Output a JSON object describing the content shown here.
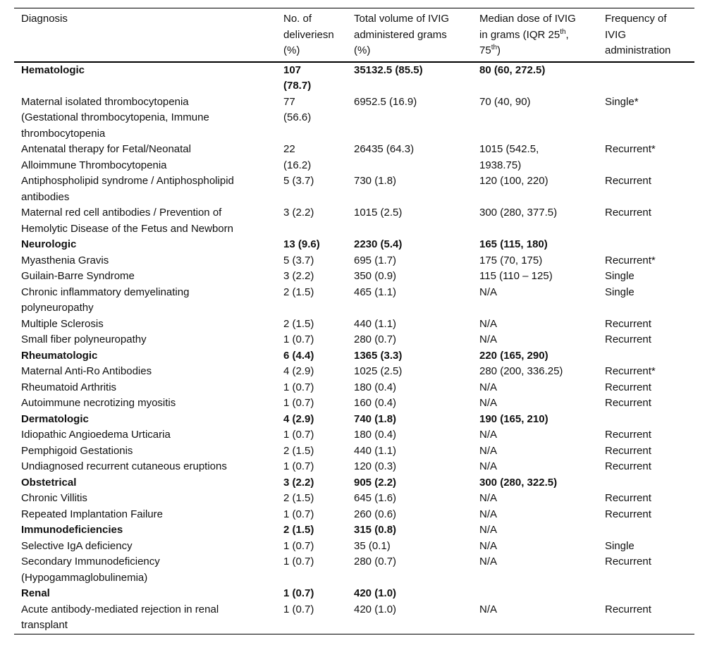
{
  "table": {
    "header": {
      "diagnosis": "Diagnosis",
      "deliveries": "No. of\ndeliveriesn\n(%)",
      "volume": "Total volume of IVIG\nadministered grams\n(%)",
      "median": {
        "p1": "Median dose of IVIG\nin grams (IQR 25",
        "s1": "th",
        "p2": ",\n75",
        "s2": "th",
        "p3": ")"
      },
      "frequency": "Frequency of\nIVIG\nadministration"
    },
    "rows": [
      {
        "diagnosis": "Hematologic",
        "n": "107\n(78.7)",
        "volume": "35132.5 (85.5)",
        "median": "80 (60, 272.5)",
        "frequency": "",
        "bold": true
      },
      {
        "diagnosis": "Maternal isolated thrombocytopenia\n(Gestational thrombocytopenia, Immune\nthrombocytopenia",
        "n": "77\n(56.6)",
        "volume": "6952.5 (16.9)",
        "median": "70 (40, 90)",
        "frequency": "Single*",
        "bold": false
      },
      {
        "diagnosis": "Antenatal therapy for Fetal/Neonatal\nAlloimmune Thrombocytopenia",
        "n": "22\n(16.2)",
        "volume": "26435 (64.3)",
        "median": "1015 (542.5,\n1938.75)",
        "frequency": "Recurrent*",
        "bold": false
      },
      {
        "diagnosis": "Antiphospholipid syndrome / Antiphospholipid\nantibodies",
        "n": "5 (3.7)",
        "volume": "730 (1.8)",
        "median": "120 (100, 220)",
        "frequency": "Recurrent",
        "bold": false
      },
      {
        "diagnosis": "Maternal red cell antibodies / Prevention of\nHemolytic Disease of the Fetus and Newborn",
        "n": "3 (2.2)",
        "volume": "1015 (2.5)",
        "median": "300 (280, 377.5)",
        "frequency": "Recurrent",
        "bold": false
      },
      {
        "diagnosis": "Neurologic",
        "n": "13 (9.6)",
        "volume": "2230 (5.4)",
        "median": "165 (115, 180)",
        "frequency": "",
        "bold": true
      },
      {
        "diagnosis": "Myasthenia Gravis",
        "n": "5 (3.7)",
        "volume": "695 (1.7)",
        "median": "175 (70, 175)",
        "frequency": "Recurrent*",
        "bold": false
      },
      {
        "diagnosis": "Guilain-Barre Syndrome",
        "n": "3 (2.2)",
        "volume": "350 (0.9)",
        "median": "115 (110 – 125)",
        "frequency": "Single",
        "bold": false
      },
      {
        "diagnosis": "Chronic inflammatory demyelinating\npolyneuropathy",
        "n": "2 (1.5)",
        "volume": "465 (1.1)",
        "median": "N/A",
        "frequency": "Single",
        "bold": false
      },
      {
        "diagnosis": "Multiple Sclerosis",
        "n": "2 (1.5)",
        "volume": "440 (1.1)",
        "median": "N/A",
        "frequency": "Recurrent",
        "bold": false
      },
      {
        "diagnosis": "Small fiber polyneuropathy",
        "n": "1 (0.7)",
        "volume": "280 (0.7)",
        "median": "N/A",
        "frequency": "Recurrent",
        "bold": false
      },
      {
        "diagnosis": "Rheumatologic",
        "n": "6 (4.4)",
        "volume": "1365 (3.3)",
        "median": "220 (165, 290)",
        "frequency": "",
        "bold": true
      },
      {
        "diagnosis": "Maternal Anti-Ro Antibodies",
        "n": "4 (2.9)",
        "volume": "1025 (2.5)",
        "median": "280 (200, 336.25)",
        "frequency": "Recurrent*",
        "bold": false
      },
      {
        "diagnosis": "Rheumatoid Arthritis",
        "n": "1 (0.7)",
        "volume": "180 (0.4)",
        "median": "N/A",
        "frequency": "Recurrent",
        "bold": false
      },
      {
        "diagnosis": "Autoimmune necrotizing myositis",
        "n": "1 (0.7)",
        "volume": "160 (0.4)",
        "median": "N/A",
        "frequency": "Recurrent",
        "bold": false
      },
      {
        "diagnosis": "Dermatologic",
        "n": "4 (2.9)",
        "volume": "740 (1.8)",
        "median": "190 (165, 210)",
        "frequency": "",
        "bold": true
      },
      {
        "diagnosis": "Idiopathic Angioedema Urticaria",
        "n": "1 (0.7)",
        "volume": "180 (0.4)",
        "median": "N/A",
        "frequency": "Recurrent",
        "bold": false
      },
      {
        "diagnosis": "Pemphigoid Gestationis",
        "n": "2 (1.5)",
        "volume": "440 (1.1)",
        "median": "N/A",
        "frequency": "Recurrent",
        "bold": false
      },
      {
        "diagnosis": "Undiagnosed recurrent cutaneous eruptions",
        "n": "1 (0.7)",
        "volume": "120 (0.3)",
        "median": "N/A",
        "frequency": "Recurrent",
        "bold": false
      },
      {
        "diagnosis": "Obstetrical",
        "n": "3 (2.2)",
        "volume": "905 (2.2)",
        "median": "300 (280, 322.5)",
        "frequency": "",
        "bold": true
      },
      {
        "diagnosis": "Chronic Villitis",
        "n": "2 (1.5)",
        "volume": "645 (1.6)",
        "median": "N/A",
        "frequency": "Recurrent",
        "bold": false
      },
      {
        "diagnosis": "Repeated Implantation Failure",
        "n": "1 (0.7)",
        "volume": "260 (0.6)",
        "median": "N/A",
        "frequency": "Recurrent",
        "bold": false
      },
      {
        "diagnosis": "Immunodeficiencies",
        "n": "2 (1.5)",
        "volume": "315 (0.8)",
        "median": "N/A",
        "frequency": "",
        "bold": true,
        "median_bold": false
      },
      {
        "diagnosis": "Selective IgA deficiency",
        "n": "1 (0.7)",
        "volume": "35 (0.1)",
        "median": "N/A",
        "frequency": "Single",
        "bold": false
      },
      {
        "diagnosis": "Secondary Immunodeficiency\n(Hypogammaglobulinemia)",
        "n": "1 (0.7)",
        "volume": "280 (0.7)",
        "median": "N/A",
        "frequency": "Recurrent",
        "bold": false
      },
      {
        "diagnosis": "Renal",
        "n": "1 (0.7)",
        "volume": "420 (1.0)",
        "median": "",
        "frequency": "",
        "bold": true
      },
      {
        "diagnosis": "Acute antibody-mediated rejection in renal\ntransplant",
        "n": "1 (0.7)",
        "volume": "420 (1.0)",
        "median": "N/A",
        "frequency": "Recurrent",
        "bold": false
      }
    ]
  }
}
